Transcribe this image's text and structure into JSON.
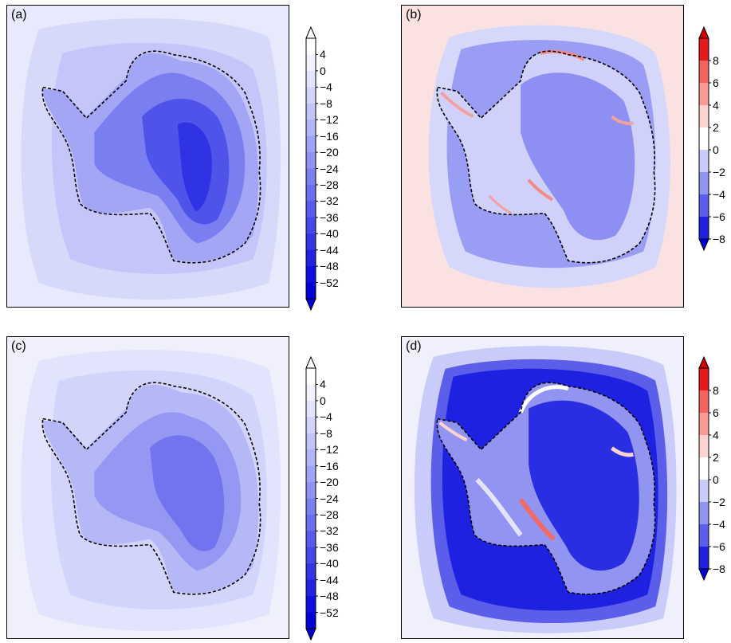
{
  "panels": [
    {
      "id": "a",
      "label": "(a)",
      "scale": "left"
    },
    {
      "id": "b",
      "label": "(b)",
      "scale": "right"
    },
    {
      "id": "c",
      "label": "(c)",
      "scale": "left"
    },
    {
      "id": "d",
      "label": "(d)",
      "scale": "right"
    }
  ],
  "colorbar_left": {
    "labels": [
      "4",
      "0",
      "−4",
      "−8",
      "−12",
      "−16",
      "−20",
      "−24",
      "−28",
      "−32",
      "−36",
      "−40",
      "−44",
      "−48",
      "−52"
    ],
    "colors": [
      "#ffffff",
      "#f2f2fe",
      "#e2e3fd",
      "#d2d4fb",
      "#c2c4f9",
      "#b1b4f7",
      "#a0a3f5",
      "#8e92f2",
      "#7c80ef",
      "#6a6ded",
      "#575aea",
      "#4548e7",
      "#3235e4",
      "#1f22e1",
      "#0c0fde",
      "#0000d8"
    ],
    "top_arrow": "#ffffff",
    "bottom_arrow": "#0000d8"
  },
  "colorbar_right": {
    "labels": [
      "8",
      "6",
      "4",
      "2",
      "0",
      "−2",
      "−4",
      "−6",
      "−8"
    ],
    "colors": [
      "#e8191c",
      "#f4625f",
      "#f99a96",
      "#fdd2cf",
      "#ffffff",
      "#c9cbfa",
      "#9294f2",
      "#5b5eea",
      "#1e22e0"
    ],
    "top_arrow": "#d00000",
    "bottom_arrow": "#0000d8"
  },
  "colors": {
    "coast_line": "#000000",
    "background_b": "#fbe2e2",
    "background_d": "#f0f0fd"
  }
}
